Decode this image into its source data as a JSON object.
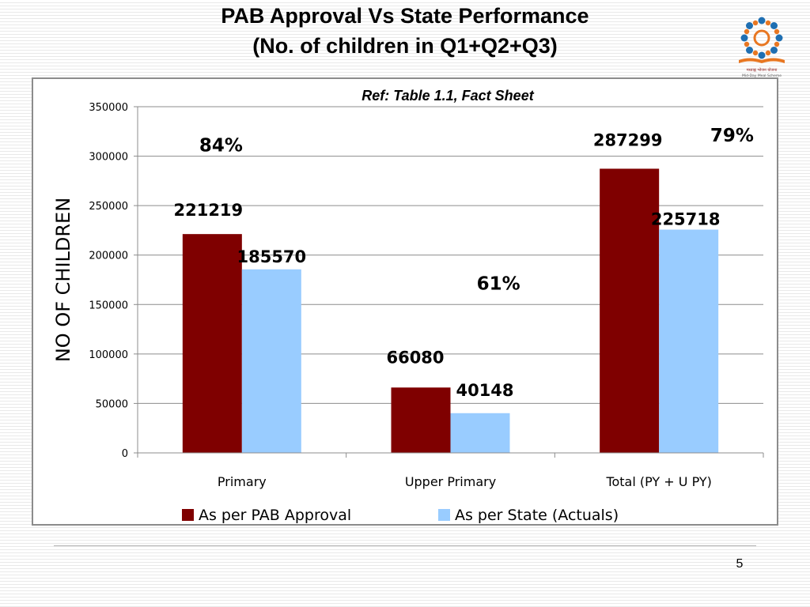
{
  "slide": {
    "title_line1": "PAB Approval  Vs State Performance",
    "title_line2": "(No. of children in Q1+Q2+Q3)",
    "page_number": "5"
  },
  "logo": {
    "icon": "mdm-logo-icon",
    "caption": "मध्याह्न भोजन योजना",
    "subcaption": "Mid-Day Meal Scheme",
    "colors": [
      "#1f6fb2",
      "#e87722",
      "#8a1c1c"
    ]
  },
  "chart_data": {
    "type": "bar",
    "ref_note": "Ref: Table 1.1, Fact Sheet",
    "ylabel": "NO OF CHILDREN",
    "xlabel": "",
    "ylim": [
      0,
      350000
    ],
    "yticks": [
      "0",
      "50000",
      "100000",
      "150000",
      "200000",
      "250000",
      "300000",
      "350000"
    ],
    "grid": true,
    "legend_position": "bottom",
    "categories": [
      "Primary",
      "Upper Primary",
      "Total (PY + U PY)"
    ],
    "series": [
      {
        "name": "As per PAB Approval",
        "color": "#7f0000",
        "values": [
          221219,
          66080,
          287299
        ]
      },
      {
        "name": "As per State (Actuals)",
        "color": "#99ccff",
        "values": [
          185570,
          40148,
          225718
        ]
      }
    ],
    "data_labels": {
      "pab": [
        "221219",
        "66080",
        "287299"
      ],
      "state": [
        "185570",
        "40148",
        "225718"
      ]
    },
    "percent_labels": [
      "84%",
      "61%",
      "79%"
    ]
  }
}
